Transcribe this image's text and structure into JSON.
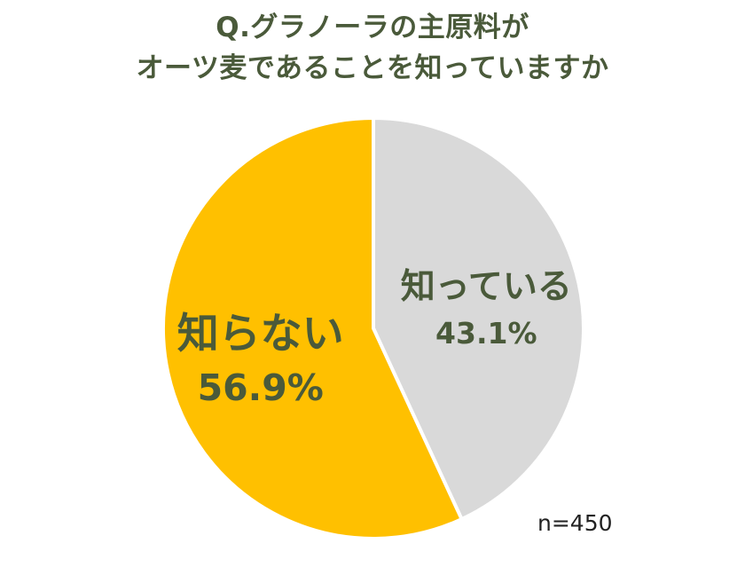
{
  "title": {
    "line1": "Q.グラノーラの主原料が",
    "line2": "オーツ麦であることを知っていますか"
  },
  "sample_note": "n=450",
  "chart_data": {
    "type": "pie",
    "title": "Q.グラノーラの主原料がオーツ麦であることを知っていますか",
    "start_angle_deg": 0,
    "direction": "clockwise",
    "slices": [
      {
        "label": "知っている",
        "value": 43.1,
        "display": "43.1%",
        "color": "#d9d9d9"
      },
      {
        "label": "知らない",
        "value": 56.9,
        "display": "56.9%",
        "color": "#ffc000"
      }
    ],
    "label_color": "#4a5a3a",
    "border_color": "#ffffff"
  }
}
